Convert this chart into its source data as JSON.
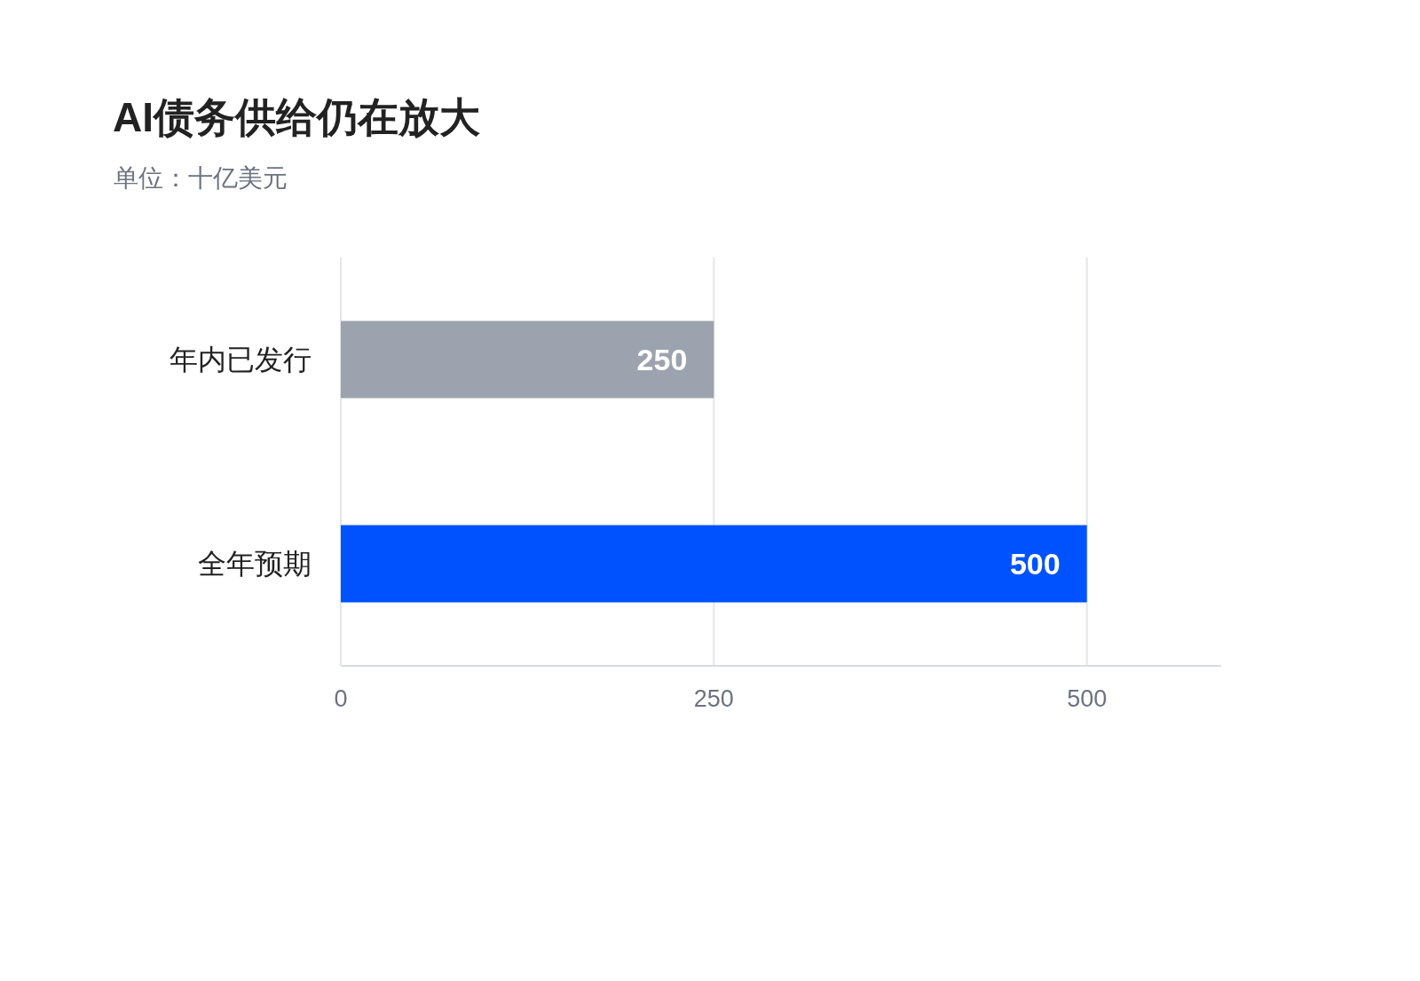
{
  "chart_data": {
    "type": "bar",
    "orientation": "horizontal",
    "title": "AI债务供给仍在放大",
    "subtitle": "单位：十亿美元",
    "categories": [
      "年内已发行",
      "全年预期"
    ],
    "values": [
      250,
      500
    ],
    "colors": [
      "#9da3ae",
      "#0052ff"
    ],
    "xlim": [
      0,
      590
    ],
    "xticks": [
      0,
      250,
      500
    ],
    "grid": "x",
    "data_labels": true
  }
}
